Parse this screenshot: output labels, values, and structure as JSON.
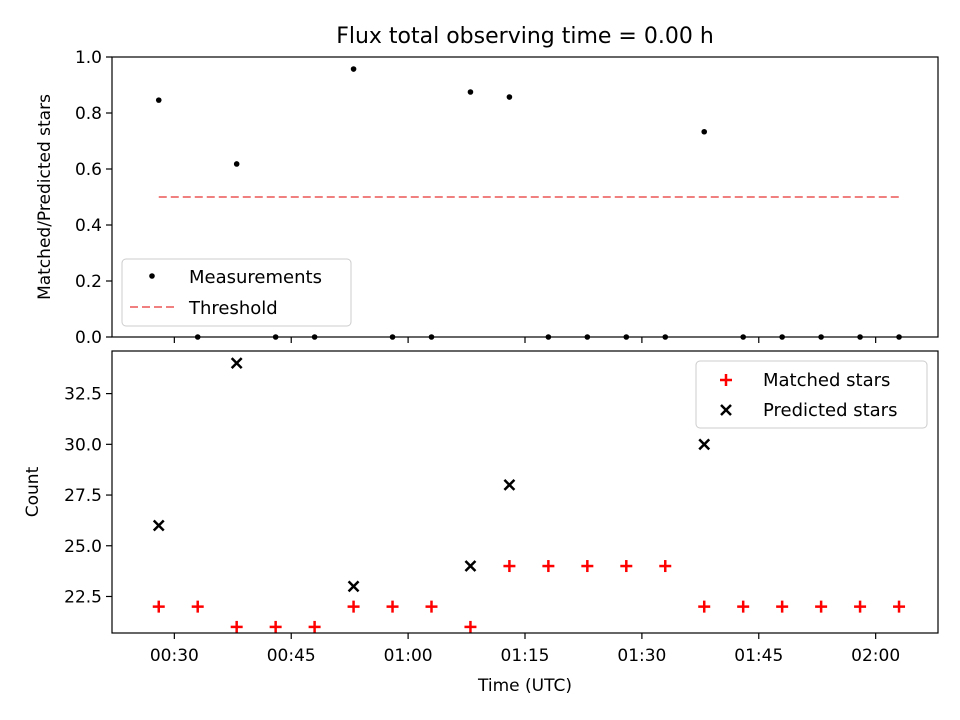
{
  "chart_data": [
    {
      "type": "scatter",
      "title": "Flux total observing time = 0.00 h",
      "ylabel": "Matched/Predicted stars",
      "xlabel": "",
      "ylim": [
        0,
        1
      ],
      "yticks": [
        "0.0",
        "0.2",
        "0.4",
        "0.6",
        "0.8",
        "1.0"
      ],
      "grid": false,
      "legend_position": "lower-left",
      "series": [
        {
          "name": "Measurements",
          "marker": "dot",
          "color": "#000000",
          "points": [
            [
              "00:28",
              0.846
            ],
            [
              "00:33",
              0.0
            ],
            [
              "00:38",
              0.618
            ],
            [
              "00:43",
              0.0
            ],
            [
              "00:48",
              0.0
            ],
            [
              "00:53",
              0.957
            ],
            [
              "00:58",
              0.0
            ],
            [
              "01:03",
              0.0
            ],
            [
              "01:08",
              0.875
            ],
            [
              "01:13",
              0.857
            ],
            [
              "01:18",
              0.0
            ],
            [
              "01:23",
              0.0
            ],
            [
              "01:28",
              0.0
            ],
            [
              "01:33",
              0.0
            ],
            [
              "01:38",
              0.733
            ],
            [
              "01:43",
              0.0
            ],
            [
              "01:48",
              0.0
            ],
            [
              "01:53",
              0.0
            ],
            [
              "01:58",
              0.0
            ],
            [
              "02:03",
              0.0
            ]
          ]
        },
        {
          "name": "Threshold",
          "marker": "dashed-line",
          "color": "#f08080",
          "points": [
            [
              "00:28",
              0.5
            ],
            [
              "02:03",
              0.5
            ]
          ]
        }
      ]
    },
    {
      "type": "scatter",
      "title": "",
      "ylabel": "Count",
      "xlabel": "Time (UTC)",
      "ylim": [
        20.7,
        34.6
      ],
      "yticks": [
        "22.5",
        "25.0",
        "27.5",
        "30.0",
        "32.5"
      ],
      "xticks": [
        "00:30",
        "00:45",
        "01:00",
        "01:15",
        "01:30",
        "01:45",
        "02:00"
      ],
      "grid": false,
      "legend_position": "upper-right",
      "series": [
        {
          "name": "Matched stars",
          "marker": "plus",
          "color": "#ff0000",
          "points": [
            [
              "00:28",
              22
            ],
            [
              "00:33",
              22
            ],
            [
              "00:38",
              21
            ],
            [
              "00:43",
              21
            ],
            [
              "00:48",
              21
            ],
            [
              "00:53",
              22
            ],
            [
              "00:58",
              22
            ],
            [
              "01:03",
              22
            ],
            [
              "01:08",
              21
            ],
            [
              "01:13",
              24
            ],
            [
              "01:18",
              24
            ],
            [
              "01:23",
              24
            ],
            [
              "01:28",
              24
            ],
            [
              "01:33",
              24
            ],
            [
              "01:38",
              22
            ],
            [
              "01:43",
              22
            ],
            [
              "01:48",
              22
            ],
            [
              "01:53",
              22
            ],
            [
              "01:58",
              22
            ],
            [
              "02:03",
              22
            ]
          ]
        },
        {
          "name": "Predicted stars",
          "marker": "x",
          "color": "#000000",
          "points": [
            [
              "00:28",
              26
            ],
            [
              "00:38",
              34
            ],
            [
              "00:53",
              23
            ],
            [
              "01:08",
              24
            ],
            [
              "01:13",
              28
            ],
            [
              "01:38",
              30
            ]
          ]
        }
      ]
    }
  ]
}
